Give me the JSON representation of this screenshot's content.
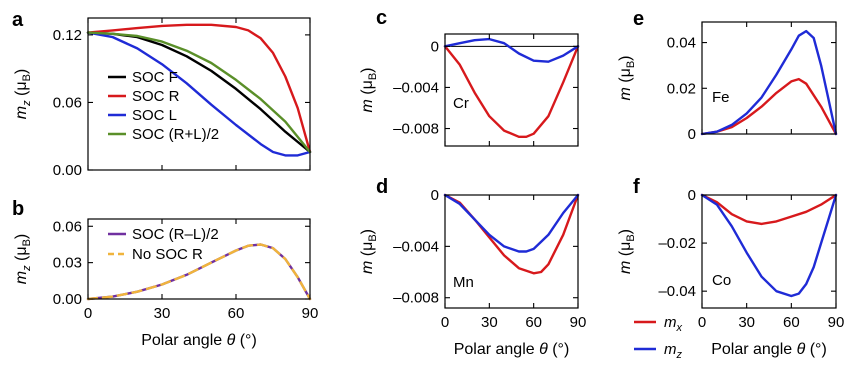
{
  "chart_data": [
    {
      "panel": "a",
      "type": "line",
      "ylabel": "m_z (μB)",
      "xlim": [
        0,
        90
      ],
      "ylim": [
        0,
        0.135
      ],
      "xticks": [
        0,
        30,
        60,
        90
      ],
      "xticklabels": [],
      "yticks": [
        0,
        0.06,
        0.12
      ],
      "yticklabels": [
        "0.00",
        "0.06",
        "0.12"
      ],
      "legend": "center-left",
      "series": [
        {
          "name": "SOC F",
          "color": "#000000",
          "x": [
            0,
            10,
            20,
            30,
            40,
            50,
            60,
            70,
            80,
            90
          ],
          "y": [
            0.122,
            0.121,
            0.118,
            0.111,
            0.101,
            0.088,
            0.072,
            0.054,
            0.034,
            0.016
          ]
        },
        {
          "name": "SOC R",
          "color": "#d7191c",
          "x": [
            0,
            10,
            20,
            30,
            40,
            50,
            60,
            65,
            70,
            75,
            80,
            85,
            90
          ],
          "y": [
            0.122,
            0.124,
            0.126,
            0.128,
            0.129,
            0.129,
            0.127,
            0.124,
            0.117,
            0.104,
            0.083,
            0.055,
            0.016
          ]
        },
        {
          "name": "SOC L",
          "color": "#1f2bd6",
          "x": [
            0,
            10,
            20,
            30,
            40,
            50,
            60,
            70,
            75,
            80,
            85,
            90
          ],
          "y": [
            0.122,
            0.118,
            0.108,
            0.094,
            0.077,
            0.058,
            0.04,
            0.023,
            0.016,
            0.013,
            0.013,
            0.016
          ]
        },
        {
          "name": "SOC (R+L)/2",
          "color": "#5a8f29",
          "x": [
            0,
            10,
            20,
            30,
            40,
            50,
            60,
            70,
            80,
            90
          ],
          "y": [
            0.122,
            0.121,
            0.119,
            0.114,
            0.106,
            0.095,
            0.08,
            0.063,
            0.043,
            0.016
          ]
        }
      ]
    },
    {
      "panel": "b",
      "type": "line",
      "xlabel": "Polar angle θ (°)",
      "ylabel": "m_z (μB)",
      "xlim": [
        0,
        90
      ],
      "ylim": [
        0,
        0.066
      ],
      "xticks": [
        0,
        30,
        60,
        90
      ],
      "xticklabels": [
        "0",
        "30",
        "60",
        "90"
      ],
      "yticks": [
        0,
        0.03,
        0.06
      ],
      "yticklabels": [
        "0.00",
        "0.03",
        "0.06"
      ],
      "legend": "top-left",
      "series": [
        {
          "name": "SOC (R–L)/2",
          "color": "#7030a0",
          "x": [
            0,
            10,
            20,
            30,
            40,
            50,
            60,
            65,
            70,
            75,
            80,
            85,
            90
          ],
          "y": [
            0,
            0.002,
            0.006,
            0.012,
            0.02,
            0.03,
            0.04,
            0.044,
            0.045,
            0.042,
            0.033,
            0.018,
            0
          ]
        },
        {
          "name": "No SOC R",
          "color": "#f0b43c",
          "dashed": true,
          "x": [
            0,
            10,
            20,
            30,
            40,
            50,
            60,
            65,
            70,
            75,
            80,
            85,
            90
          ],
          "y": [
            0,
            0.002,
            0.006,
            0.012,
            0.02,
            0.03,
            0.04,
            0.044,
            0.045,
            0.042,
            0.033,
            0.018,
            0
          ]
        }
      ]
    },
    {
      "panel": "c",
      "type": "line",
      "ylabel": "m (μB)",
      "annotation": "Cr",
      "xlim": [
        0,
        90
      ],
      "ylim": [
        -0.0097,
        0.0012
      ],
      "xticks": [
        0,
        30,
        60,
        90
      ],
      "xticklabels": [],
      "yticks": [
        0,
        -0.004,
        -0.008
      ],
      "yticklabels": [
        "0",
        "–0.004",
        "–0.008"
      ],
      "zeroline": true,
      "series": [
        {
          "name": "m_x",
          "color": "#d7191c",
          "x": [
            0,
            10,
            20,
            30,
            40,
            50,
            55,
            60,
            70,
            80,
            90
          ],
          "y": [
            0,
            -0.0018,
            -0.0045,
            -0.0068,
            -0.0082,
            -0.0088,
            -0.0088,
            -0.0085,
            -0.0068,
            -0.0035,
            0
          ]
        },
        {
          "name": "m_z",
          "color": "#1f2bd6",
          "x": [
            0,
            10,
            20,
            30,
            40,
            50,
            60,
            70,
            80,
            90
          ],
          "y": [
            0,
            0.0003,
            0.0006,
            0.0007,
            0.0003,
            -0.0007,
            -0.0014,
            -0.0015,
            -0.0009,
            0
          ]
        }
      ]
    },
    {
      "panel": "d",
      "type": "line",
      "xlabel": "Polar angle θ (°)",
      "ylabel": "m (μB)",
      "annotation": "Mn",
      "xlim": [
        0,
        90
      ],
      "ylim": [
        -0.0088,
        0
      ],
      "xticks": [
        0,
        30,
        60,
        90
      ],
      "xticklabels": [
        "0",
        "30",
        "60",
        "90"
      ],
      "yticks": [
        0,
        -0.004,
        -0.008
      ],
      "yticklabels": [
        "0",
        "–0.004",
        "–0.008"
      ],
      "series": [
        {
          "name": "m_x",
          "color": "#d7191c",
          "x": [
            0,
            10,
            20,
            30,
            40,
            50,
            60,
            65,
            70,
            80,
            90
          ],
          "y": [
            0,
            -0.0006,
            -0.0019,
            -0.0033,
            -0.0047,
            -0.0057,
            -0.0061,
            -0.006,
            -0.0054,
            -0.0031,
            0
          ]
        },
        {
          "name": "m_z",
          "color": "#1f2bd6",
          "x": [
            0,
            10,
            20,
            30,
            40,
            50,
            55,
            60,
            70,
            80,
            90
          ],
          "y": [
            0,
            -0.0007,
            -0.0019,
            -0.0031,
            -0.004,
            -0.0044,
            -0.0044,
            -0.0042,
            -0.0031,
            -0.0014,
            0
          ]
        }
      ]
    },
    {
      "panel": "e",
      "type": "line",
      "ylabel": "m (μB)",
      "annotation": "Fe",
      "xlim": [
        0,
        90
      ],
      "ylim": [
        0,
        0.049
      ],
      "xticks": [
        0,
        30,
        60,
        90
      ],
      "xticklabels": [],
      "yticks": [
        0,
        0.02,
        0.04
      ],
      "yticklabels": [
        "0",
        "0.02",
        "0.04"
      ],
      "series": [
        {
          "name": "m_x",
          "color": "#d7191c",
          "x": [
            0,
            10,
            20,
            30,
            40,
            50,
            60,
            65,
            70,
            80,
            90
          ],
          "y": [
            0,
            0.001,
            0.003,
            0.007,
            0.012,
            0.018,
            0.023,
            0.024,
            0.022,
            0.012,
            0
          ]
        },
        {
          "name": "m_z",
          "color": "#1f2bd6",
          "x": [
            0,
            10,
            20,
            30,
            40,
            50,
            60,
            65,
            70,
            75,
            80,
            85,
            90
          ],
          "y": [
            0,
            0.001,
            0.004,
            0.009,
            0.016,
            0.026,
            0.037,
            0.043,
            0.045,
            0.042,
            0.03,
            0.015,
            0
          ]
        }
      ]
    },
    {
      "panel": "f",
      "type": "line",
      "xlabel": "Polar angle θ (°)",
      "ylabel": "m (μB)",
      "annotation": "Co",
      "xlim": [
        0,
        90
      ],
      "ylim": [
        -0.047,
        0
      ],
      "xticks": [
        0,
        30,
        60,
        90
      ],
      "xticklabels": [
        "0",
        "30",
        "60",
        "90"
      ],
      "yticks": [
        0,
        -0.02,
        -0.04
      ],
      "yticklabels": [
        "0",
        "–0.02",
        "–0.04"
      ],
      "series": [
        {
          "name": "m_x",
          "color": "#d7191c",
          "x": [
            0,
            10,
            20,
            30,
            40,
            50,
            60,
            70,
            80,
            90
          ],
          "y": [
            0,
            -0.003,
            -0.008,
            -0.011,
            -0.012,
            -0.011,
            -0.009,
            -0.007,
            -0.004,
            0
          ]
        },
        {
          "name": "m_z",
          "color": "#1f2bd6",
          "x": [
            0,
            10,
            20,
            30,
            40,
            50,
            60,
            65,
            70,
            75,
            80,
            85,
            90
          ],
          "y": [
            0,
            -0.004,
            -0.013,
            -0.024,
            -0.034,
            -0.04,
            -0.042,
            -0.041,
            -0.037,
            -0.03,
            -0.02,
            -0.01,
            0
          ]
        }
      ]
    }
  ],
  "panel_labels": [
    "a",
    "b",
    "c",
    "d",
    "e",
    "f"
  ],
  "bottom_legend": [
    {
      "name": "m",
      "sub": "x",
      "color": "#d7191c"
    },
    {
      "name": "m",
      "sub": "z",
      "color": "#1f2bd6"
    }
  ]
}
